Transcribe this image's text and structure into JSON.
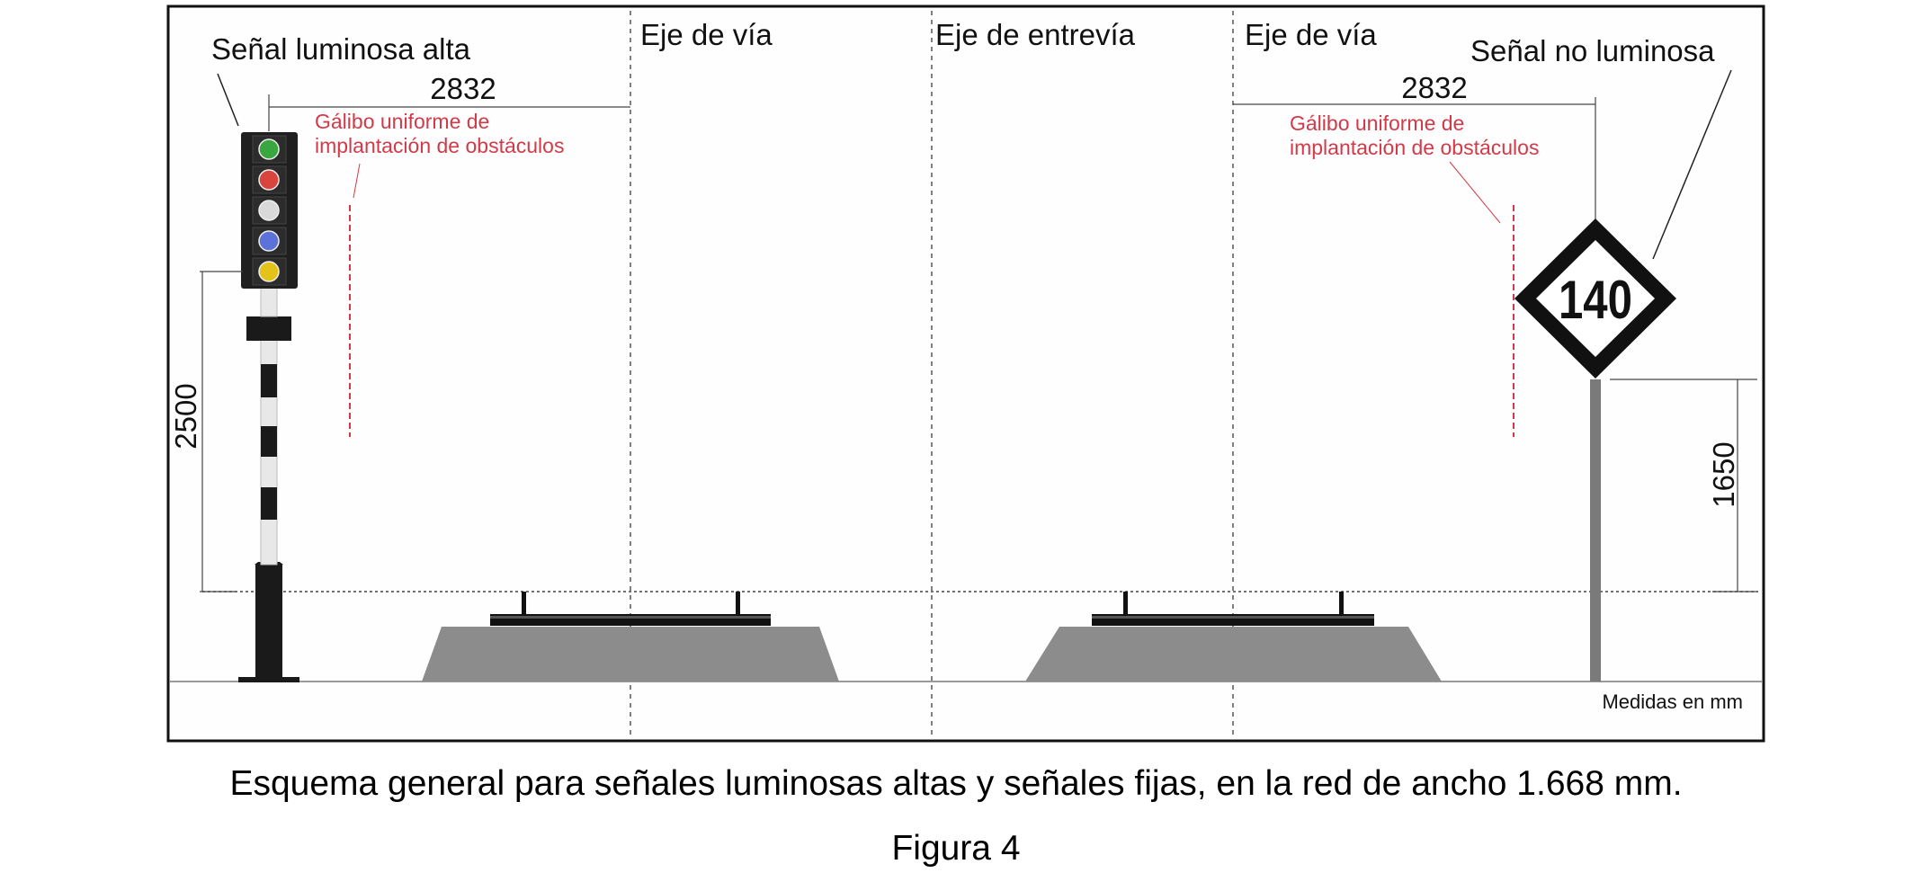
{
  "labels": {
    "high_signal": "Señal luminosa alta",
    "non_luminous_signal": "Señal no luminosa",
    "track_axis_left": "Eje de vía",
    "inter_track_axis": "Eje de entrevía",
    "track_axis_right": "Eje de vía",
    "gauge_left_line1": "Gálibo uniforme de",
    "gauge_left_line2": "implantación de obstáculos",
    "gauge_right_line1": "Gálibo uniforme de",
    "gauge_right_line2": "implantación de obstáculos",
    "units_note": "Medidas en mm",
    "speed_value": "140"
  },
  "dimensions": {
    "left_horizontal": "2832",
    "right_horizontal": "2832",
    "left_vertical": "2500",
    "right_vertical": "1650"
  },
  "signal_lamps": [
    {
      "name": "green",
      "color": "#3aa63f"
    },
    {
      "name": "red",
      "color": "#d9443c"
    },
    {
      "name": "white",
      "color": "#d9d9d9"
    },
    {
      "name": "blue",
      "color": "#5b72d8"
    },
    {
      "name": "yellow",
      "color": "#e3c21a"
    }
  ],
  "colors": {
    "gauge_red": "#d23a48",
    "ballast_gray": "#8c8c8c"
  },
  "caption": "Esquema general para señales luminosas altas y señales fijas, en la red de ancho 1.668 mm.",
  "figure_label": "Figura 4"
}
